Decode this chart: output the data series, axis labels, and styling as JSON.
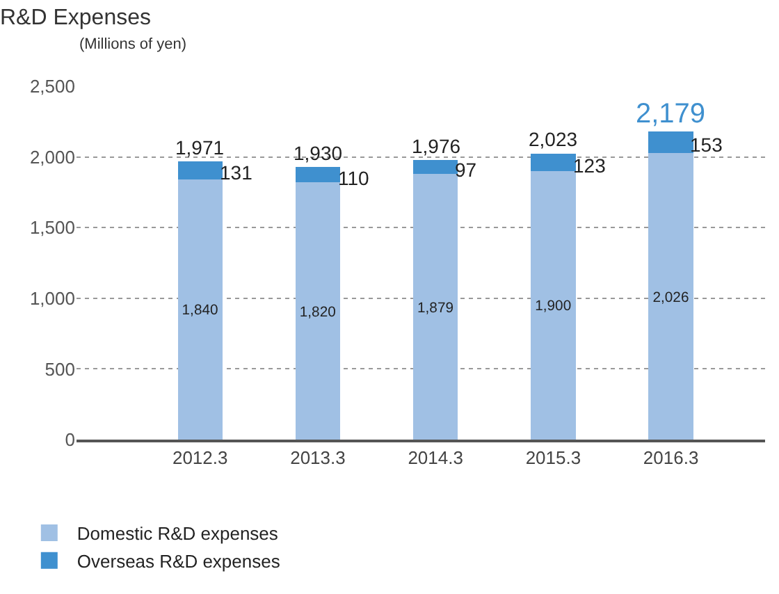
{
  "chart_data": {
    "type": "bar",
    "title": "R&D Expenses",
    "ylabel": "(Millions of yen)",
    "categories": [
      "2012.3",
      "2013.3",
      "2014.3",
      "2015.3",
      "2016.3"
    ],
    "series": [
      {
        "name": "Domestic R&D expenses",
        "color": "#a0c0e4",
        "values": [
          1840,
          1820,
          1879,
          1900,
          2026
        ],
        "value_labels": [
          "1,840",
          "1,820",
          "1,879",
          "1,900",
          "2,026"
        ]
      },
      {
        "name": "Overseas R&D expenses",
        "color": "#3f90cf",
        "values": [
          131,
          110,
          97,
          123,
          153
        ],
        "value_labels": [
          "131",
          "110",
          "97",
          "123",
          "153"
        ]
      }
    ],
    "stacked": true,
    "totals": [
      "1,971",
      "1,930",
      "1,976",
      "2,023",
      "2,179"
    ],
    "ylim": [
      0,
      2500
    ],
    "yticks": [
      0,
      500,
      {
        "value": 1000,
        "label": "1,000"
      },
      {
        "value": 1500,
        "label": "1,500"
      },
      {
        "value": 2000,
        "label": "2,000"
      },
      {
        "value": 2500,
        "label": "2,500"
      }
    ],
    "grid": "y",
    "legend": "bottom left"
  }
}
